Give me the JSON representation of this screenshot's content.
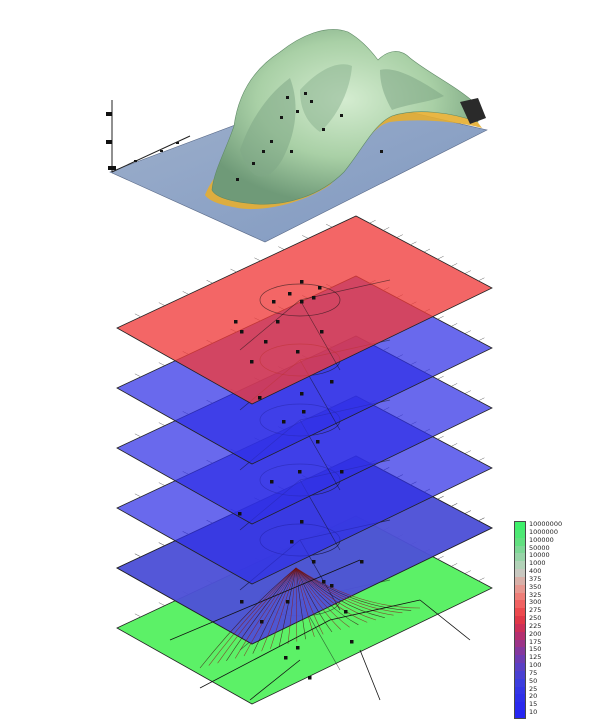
{
  "legend": {
    "entries": [
      {
        "label": "10000000",
        "color": "#3ef06a"
      },
      {
        "label": "1000000",
        "color": "#4ee874"
      },
      {
        "label": "100000",
        "color": "#62e080"
      },
      {
        "label": "50000",
        "color": "#7ed896"
      },
      {
        "label": "10000",
        "color": "#98d4a8"
      },
      {
        "label": "1000",
        "color": "#b2d2b8"
      },
      {
        "label": "400",
        "color": "#c8c8c0"
      },
      {
        "label": "375",
        "color": "#d8b0a8"
      },
      {
        "label": "350",
        "color": "#e69890"
      },
      {
        "label": "325",
        "color": "#ee7e78"
      },
      {
        "label": "300",
        "color": "#f06262"
      },
      {
        "label": "275",
        "color": "#ec4a4e"
      },
      {
        "label": "250",
        "color": "#e03848"
      },
      {
        "label": "225",
        "color": "#cc3058"
      },
      {
        "label": "200",
        "color": "#b43070"
      },
      {
        "label": "175",
        "color": "#9c3488"
      },
      {
        "label": "150",
        "color": "#84389e"
      },
      {
        "label": "125",
        "color": "#6e3cb2"
      },
      {
        "label": "100",
        "color": "#5a40c4"
      },
      {
        "label": "75",
        "color": "#4a40d2"
      },
      {
        "label": "50",
        "color": "#3c3ede"
      },
      {
        "label": "25",
        "color": "#3436e6"
      },
      {
        "label": "20",
        "color": "#2e30ea"
      },
      {
        "label": "15",
        "color": "#2a2aee"
      },
      {
        "label": "10",
        "color": "#2626f2"
      }
    ]
  },
  "colors": {
    "terrain": "#b7dab4",
    "terrain_shadow": "#6f9a78",
    "shore": "#e8b23a",
    "water": "#8fa5c8",
    "red_layer": "#ef3b3b",
    "blue_layer": "#2f2fe6",
    "green_layer": "#4ef05a",
    "grey_layer": "#a8b4a8",
    "contour": "#101010"
  }
}
